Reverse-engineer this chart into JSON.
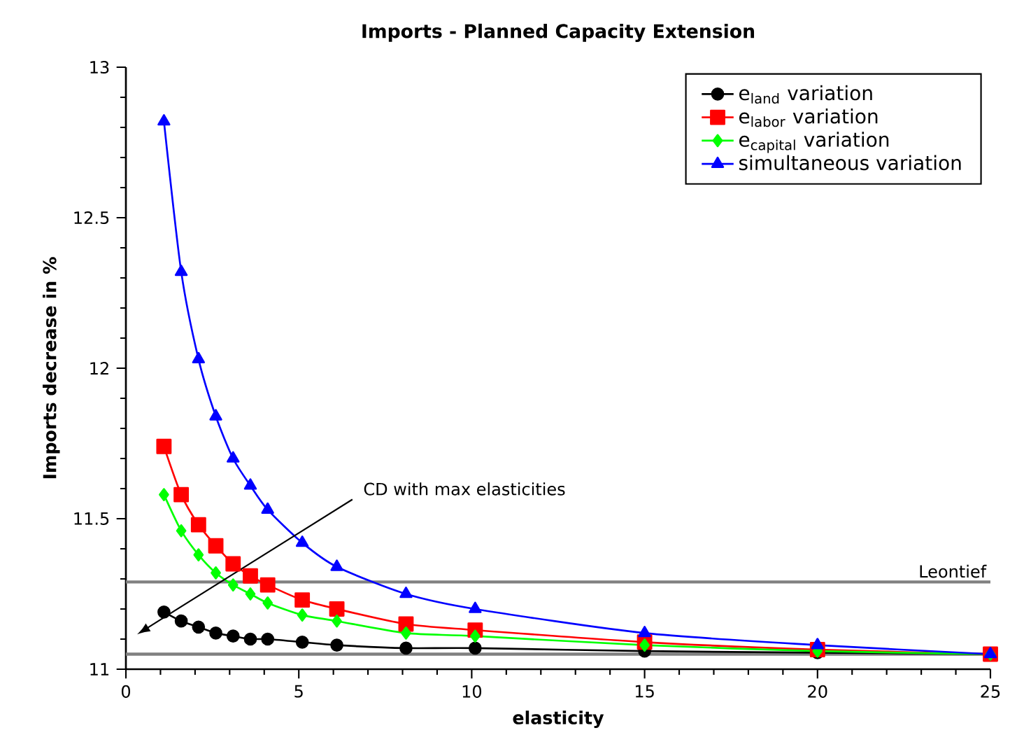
{
  "chart_data": {
    "type": "line",
    "title": "Imports - Planned Capacity Extension",
    "xlabel": "elasticity",
    "ylabel": "Imports decrease in %",
    "x": [
      1.1,
      1.6,
      2.1,
      2.6,
      3.1,
      3.6,
      4.1,
      5.1,
      6.1,
      8.1,
      10.1,
      15,
      20,
      25
    ],
    "series": [
      {
        "name": "e$_{land}$ variation",
        "color": "#000000",
        "marker": "circle",
        "values": [
          11.19,
          11.16,
          11.14,
          11.12,
          11.11,
          11.1,
          11.1,
          11.09,
          11.08,
          11.07,
          11.07,
          11.06,
          11.055,
          11.05
        ]
      },
      {
        "name": "e$_{labor}$ variation",
        "color": "#ff0000",
        "marker": "square",
        "values": [
          11.74,
          11.58,
          11.48,
          11.41,
          11.35,
          11.31,
          11.28,
          11.23,
          11.2,
          11.15,
          11.13,
          11.09,
          11.065,
          11.05
        ]
      },
      {
        "name": "e$_{capital}$ variation",
        "color": "#00ff00",
        "marker": "diamond",
        "values": [
          11.58,
          11.46,
          11.38,
          11.32,
          11.28,
          11.25,
          11.22,
          11.18,
          11.16,
          11.12,
          11.11,
          11.08,
          11.06,
          11.05
        ]
      },
      {
        "name": "simultaneous variation",
        "color": "#0000ff",
        "marker": "triangle",
        "values": [
          12.82,
          12.32,
          12.03,
          11.84,
          11.7,
          11.61,
          11.53,
          11.42,
          11.34,
          11.25,
          11.2,
          11.12,
          11.08,
          11.05
        ]
      }
    ],
    "xlim": [
      0,
      25
    ],
    "ylim": [
      11,
      13
    ],
    "xticks": [
      0,
      5,
      10,
      15,
      20,
      25
    ],
    "yticks": [
      11,
      11.5,
      12,
      12.5,
      13
    ],
    "ref_lines": [
      {
        "axis": "y",
        "value": 11.29,
        "label": "Leontief",
        "color": "#808080"
      },
      {
        "axis": "y",
        "value": 11.05,
        "color": "#808080"
      }
    ],
    "annotations": [
      "CD with max elasticities"
    ],
    "legend": "top right",
    "grid": false
  }
}
